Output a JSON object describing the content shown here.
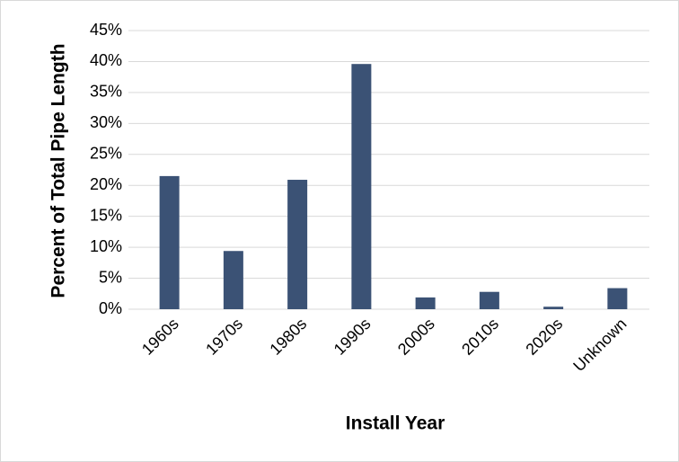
{
  "chart_data": {
    "type": "bar",
    "x_label": "Install Year",
    "y_label": "Percent of Total Pipe Length",
    "categories": [
      "1960s",
      "1970s",
      "1980s",
      "1990s",
      "2000s",
      "2010s",
      "2020s",
      "Unknown"
    ],
    "values": [
      21.5,
      9.4,
      20.9,
      39.6,
      1.9,
      2.8,
      0.4,
      3.4
    ],
    "color": "#3b5275",
    "ylim": [
      0,
      45
    ],
    "yticks": [
      {
        "value": 0,
        "label": "0%"
      },
      {
        "value": 5,
        "label": "5%"
      },
      {
        "value": 10,
        "label": "10%"
      },
      {
        "value": 15,
        "label": "15%"
      },
      {
        "value": 20,
        "label": "20%"
      },
      {
        "value": 25,
        "label": "25%"
      },
      {
        "value": 30,
        "label": "30%"
      },
      {
        "value": 35,
        "label": "35%"
      },
      {
        "value": 40,
        "label": "40%"
      },
      {
        "value": 45,
        "label": "45%"
      }
    ],
    "grid": true
  }
}
